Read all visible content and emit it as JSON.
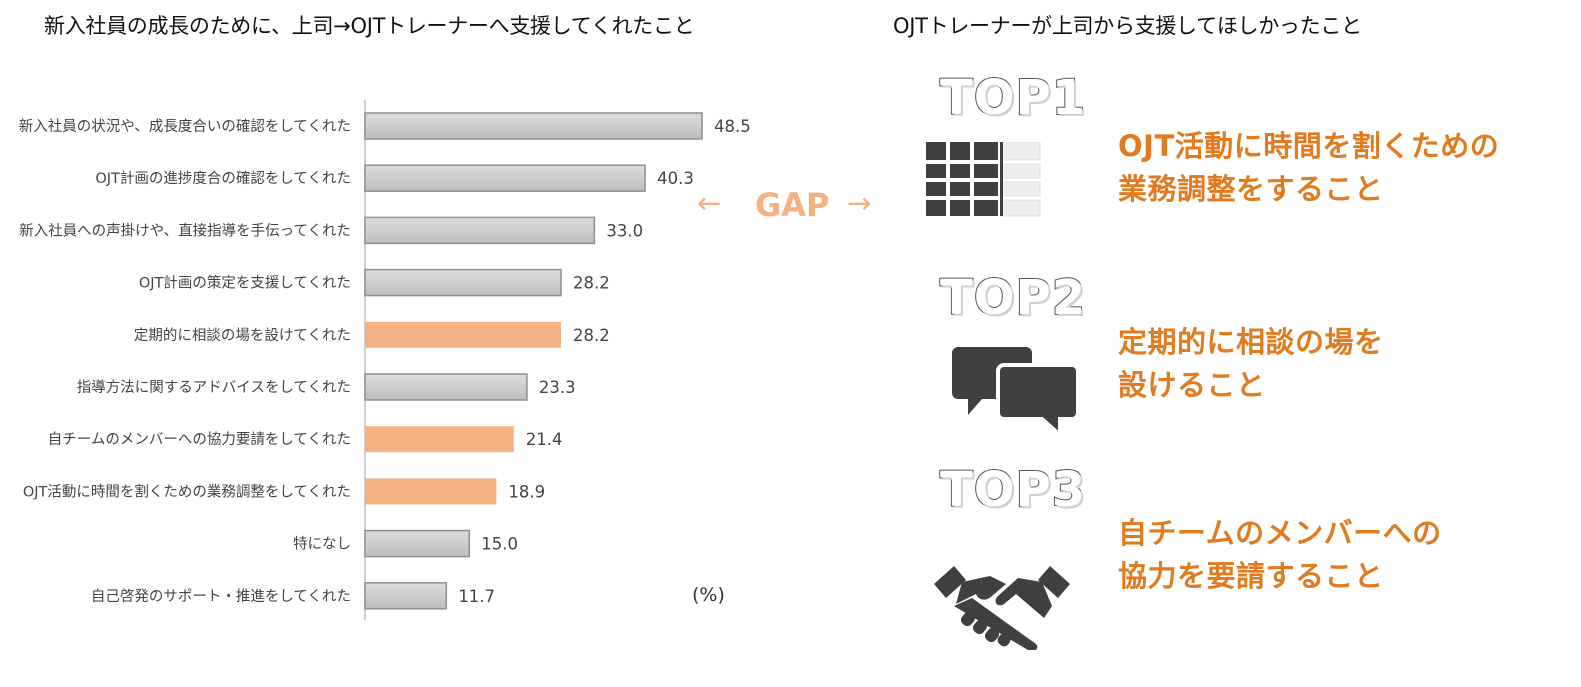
{
  "left_title": "新入社員の成長のために、上司→OJTトレーナーへ支援してくれたこと",
  "right_title": "OJTトレーナーが上司から支援してほしかったこと",
  "unit_label": "(%)",
  "gap": {
    "arrow_left": "←",
    "text": "GAP",
    "arrow_right": "→"
  },
  "colors": {
    "gray_bar": "#c8c8c8",
    "gray_bar_border": "#8f8f8f",
    "highlight_bar": "#f4b183",
    "gap_text": "#f4b183",
    "top_text": "#e07b1f",
    "icon": "#404040"
  },
  "chart_data": {
    "type": "bar",
    "orientation": "horizontal",
    "categories": [
      "新入社員の状況や、成長度合いの確認をしてくれた",
      "OJT計画の進捗度合の確認をしてくれた",
      "新入社員への声掛けや、直接指導を手伝ってくれた",
      "OJT計画の策定を支援してくれた",
      "定期的に相談の場を設けてくれた",
      "指導方法に関するアドバイスをしてくれた",
      "自チームのメンバーへの協力要請をしてくれた",
      "OJT活動に時間を割くための業務調整をしてくれた",
      "特になし",
      "自己啓発のサポート・推進をしてくれた"
    ],
    "values": [
      48.5,
      40.3,
      33.0,
      28.2,
      28.2,
      23.3,
      21.4,
      18.9,
      15.0,
      11.7
    ],
    "value_labels": [
      "48.5",
      "40.3",
      "33.0",
      "28.2",
      "28.2",
      "23.3",
      "21.4",
      "18.9",
      "15.0",
      "11.7"
    ],
    "highlighted": [
      false,
      false,
      false,
      false,
      true,
      false,
      true,
      true,
      false,
      false
    ],
    "xlim": [
      0,
      100
    ],
    "grid": false,
    "legend": "none"
  },
  "top_items": [
    {
      "rank_label": "TOP1",
      "icon": "calendar-icon",
      "lines": [
        "OJT活動に時間を割くための",
        "業務調整をすること"
      ]
    },
    {
      "rank_label": "TOP2",
      "icon": "chat-bubbles-icon",
      "lines": [
        "定期的に相談の場を",
        "設けること"
      ]
    },
    {
      "rank_label": "TOP3",
      "icon": "handshake-icon",
      "lines": [
        "自チームのメンバーへの",
        "協力を要請すること"
      ]
    }
  ]
}
